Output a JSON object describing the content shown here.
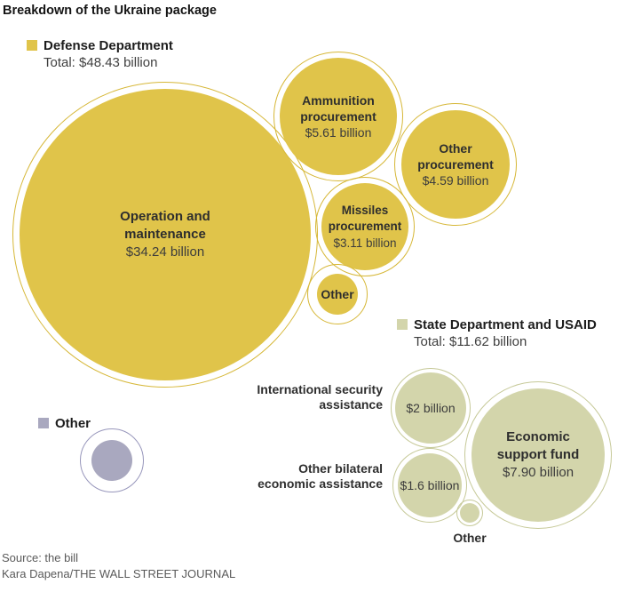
{
  "title": "Breakdown of the Ukraine package",
  "colors": {
    "defense_fill": "#e0c44a",
    "defense_outline": "#d6b737",
    "state_fill": "#d3d5ab",
    "state_outline": "#c6c998",
    "other_fill": "#a9a8bf",
    "other_outline": "#9796bb"
  },
  "legend": {
    "defense": {
      "label": "Defense Department",
      "total": "Total: $48.43 billion"
    },
    "state": {
      "label": "State Department and USAID",
      "total": "Total: $11.62 billion"
    },
    "other": {
      "label": "Other"
    }
  },
  "bubbles": {
    "operation": {
      "name": "Operation and maintenance",
      "value": "$34.24 billion"
    },
    "ammunition": {
      "name": "Ammunition procurement",
      "value": "$5.61 billion"
    },
    "other_procurement": {
      "name": "Other procurement",
      "value": "$4.59 billion"
    },
    "missiles": {
      "name": "Missiles procurement",
      "value": "$3.11 billion"
    },
    "defense_other": {
      "name": "Other"
    },
    "intl_security": {
      "label": "International security assistance",
      "value": "$2 billion"
    },
    "other_bilateral": {
      "label": "Other bilateral economic assistance",
      "value": "$1.6 billion"
    },
    "economic_support": {
      "name": "Economic support fund",
      "value": "$7.90 billion"
    },
    "state_other": {
      "name": "Other"
    }
  },
  "footer": {
    "source": "Source: the bill",
    "credit": "Kara Dapena/THE WALL STREET JOURNAL"
  },
  "chart_data": {
    "type": "bubble",
    "title": "Breakdown of the Ukraine package",
    "sizing": "circle area proportional to value, tangent circle packing with thin outline ring per bubble",
    "legend_position": "defense top-left, state mid-right, other bottom-left",
    "series": [
      {
        "name": "Defense Department",
        "total_billion_usd": 48.43,
        "color": "#e0c44a",
        "items": [
          {
            "label": "Operation and maintenance",
            "value_billion_usd": 34.24
          },
          {
            "label": "Ammunition procurement",
            "value_billion_usd": 5.61
          },
          {
            "label": "Other procurement",
            "value_billion_usd": 4.59
          },
          {
            "label": "Missiles procurement",
            "value_billion_usd": 3.11
          },
          {
            "label": "Other"
          }
        ]
      },
      {
        "name": "State Department and USAID",
        "total_billion_usd": 11.62,
        "color": "#d3d5ab",
        "items": [
          {
            "label": "Economic support fund",
            "value_billion_usd": 7.9
          },
          {
            "label": "International security assistance",
            "value_billion_usd": 2.0
          },
          {
            "label": "Other bilateral economic assistance",
            "value_billion_usd": 1.6
          },
          {
            "label": "Other"
          }
        ]
      },
      {
        "name": "Other",
        "color": "#a9a8bf",
        "items": []
      }
    ],
    "source": "Source: the bill",
    "credit": "Kara Dapena/THE WALL STREET JOURNAL"
  }
}
